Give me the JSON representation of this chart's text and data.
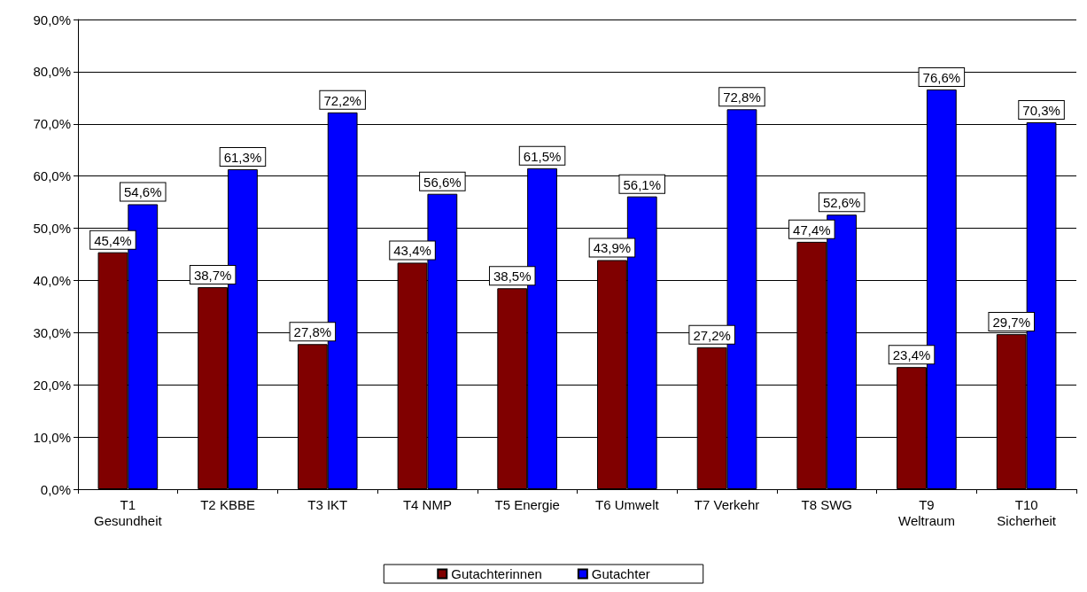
{
  "chart_data": {
    "type": "bar",
    "categories": [
      "T1\nGesundheit",
      "T2 KBBE",
      "T3 IKT",
      "T4 NMP",
      "T5 Energie",
      "T6 Umwelt",
      "T7 Verkehr",
      "T8 SWG",
      "T9\nWeltraum",
      "T10\nSicherheit"
    ],
    "series": [
      {
        "name": "Gutachterinnen",
        "color": "#800000",
        "values": [
          45.4,
          38.7,
          27.8,
          43.4,
          38.5,
          43.9,
          27.2,
          47.4,
          23.4,
          29.7
        ],
        "value_labels": [
          "45,4%",
          "38,7%",
          "27,8%",
          "43,4%",
          "38,5%",
          "43,9%",
          "27,2%",
          "47,4%",
          "23,4%",
          "29,7%"
        ]
      },
      {
        "name": "Gutachter",
        "color": "#0000ff",
        "values": [
          54.6,
          61.3,
          72.2,
          56.6,
          61.5,
          56.1,
          72.8,
          52.6,
          76.6,
          70.3
        ],
        "value_labels": [
          "54,6%",
          "61,3%",
          "72,2%",
          "56,6%",
          "61,5%",
          "56,1%",
          "72,8%",
          "52,6%",
          "76,6%",
          "70,3%"
        ]
      }
    ],
    "ylim": [
      0,
      90
    ],
    "yticks": [
      {
        "value": 0,
        "label": "0,0%"
      },
      {
        "value": 10,
        "label": "10,0%"
      },
      {
        "value": 20,
        "label": "20,0%"
      },
      {
        "value": 30,
        "label": "30,0%"
      },
      {
        "value": 40,
        "label": "40,0%"
      },
      {
        "value": 50,
        "label": "50,0%"
      },
      {
        "value": 60,
        "label": "60,0%"
      },
      {
        "value": 70,
        "label": "70,0%"
      },
      {
        "value": 80,
        "label": "80,0%"
      },
      {
        "value": 90,
        "label": "90,0%"
      }
    ],
    "grid": "y",
    "legend": "bottom"
  }
}
